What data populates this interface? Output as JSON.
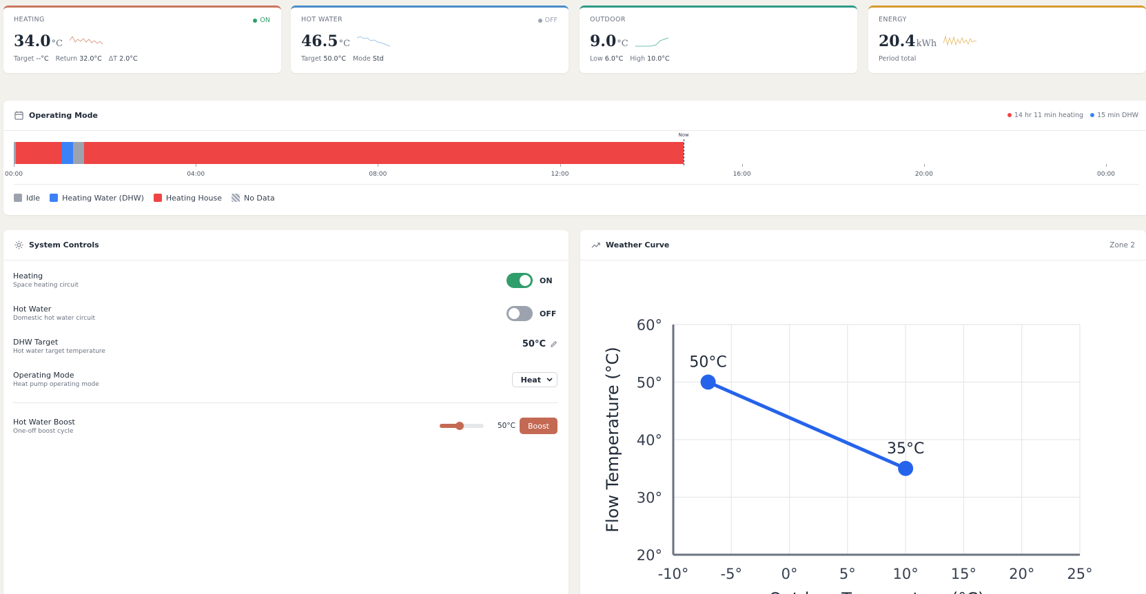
{
  "stats": [
    {
      "label": "HEATING",
      "status": "ON",
      "status_color": "#2f9e6b",
      "value": "34.0",
      "unit": "°C",
      "accent": "#c8765f",
      "spark_color": "#d9a08c",
      "sub": [
        {
          "k": "Target",
          "v": "--°C"
        },
        {
          "k": "Return",
          "v": "32.0°C"
        },
        {
          "k": "ΔT",
          "v": "2.0°C"
        }
      ]
    },
    {
      "label": "HOT WATER",
      "status": "OFF",
      "status_color": "#9ca3af",
      "value": "46.5",
      "unit": "°C",
      "accent": "#4a8cc9",
      "spark_color": "#9cc3e6",
      "sub": [
        {
          "k": "Target",
          "v": "50.0°C"
        },
        {
          "k": "Mode",
          "v": "Std"
        }
      ]
    },
    {
      "label": "OUTDOOR",
      "status": "",
      "status_color": "",
      "value": "9.0",
      "unit": "°C",
      "accent": "#2e9a86",
      "spark_color": "#6cc0b0",
      "sub": [
        {
          "k": "Low",
          "v": "6.0°C"
        },
        {
          "k": "High",
          "v": "10.0°C"
        }
      ]
    },
    {
      "label": "ENERGY",
      "status": "",
      "status_color": "",
      "value": "20.4",
      "unit": "kWh",
      "accent": "#d69a2d",
      "spark_color": "#e8c275",
      "sub": [
        {
          "k": "Period total",
          "v": ""
        }
      ]
    }
  ],
  "operating_mode": {
    "title": "Operating Mode",
    "summary_heating": "14 hr 11 min heating",
    "summary_dhw": "15 min DHW",
    "now_label": "Now",
    "ticks": [
      "00:00",
      "04:00",
      "08:00",
      "12:00",
      "16:00",
      "20:00",
      "00:00"
    ],
    "tick_hours": [
      0,
      4,
      8,
      12,
      16,
      20,
      24
    ],
    "segments": [
      {
        "mode": "idle",
        "start": 0.0,
        "end": 0.04
      },
      {
        "mode": "heating",
        "start": 0.04,
        "end": 1.05
      },
      {
        "mode": "dhw",
        "start": 1.05,
        "end": 1.3
      },
      {
        "mode": "idle",
        "start": 1.3,
        "end": 1.55
      },
      {
        "mode": "heating",
        "start": 1.55,
        "end": 14.72
      }
    ],
    "now_hour": 14.72,
    "legend": [
      {
        "key": "idle",
        "label": "Idle",
        "color": "#9ca3af"
      },
      {
        "key": "dhw",
        "label": "Heating Water (DHW)",
        "color": "#3b82f6"
      },
      {
        "key": "heating",
        "label": "Heating House",
        "color": "#ef4444"
      },
      {
        "key": "nodata",
        "label": "No Data",
        "color": "hatch"
      }
    ]
  },
  "controls": {
    "title": "System Controls",
    "heating": {
      "name": "Heating",
      "desc": "Space heating circuit",
      "state": "ON",
      "on": true
    },
    "hot_water": {
      "name": "Hot Water",
      "desc": "Domestic hot water circuit",
      "state": "OFF",
      "on": false
    },
    "dhw_target": {
      "name": "DHW Target",
      "desc": "Hot water target temperature",
      "value": "50°C"
    },
    "op_mode": {
      "name": "Operating Mode",
      "desc": "Heat pump operating mode",
      "value": "Heat"
    },
    "boost": {
      "name": "Hot Water Boost",
      "desc": "One-off boost cycle",
      "value": "50°C",
      "button": "Boost",
      "slider_fraction": 0.45
    }
  },
  "weather": {
    "title": "Weather Curve",
    "zone": "Zone 2"
  },
  "chart_data": {
    "type": "line",
    "xlabel": "Outdoor Temperature (°C)",
    "ylabel": "Flow Temperature (°C)",
    "xlim": [
      -10,
      25
    ],
    "ylim": [
      20,
      60
    ],
    "x_ticks": [
      -10,
      -5,
      0,
      5,
      10,
      15,
      20,
      25
    ],
    "y_ticks": [
      20,
      30,
      40,
      50,
      60
    ],
    "grid": true,
    "points": [
      {
        "x": -7,
        "y": 50,
        "label": "50°C"
      },
      {
        "x": 10,
        "y": 35,
        "label": "35°C"
      }
    ],
    "color": "#2563eb"
  }
}
